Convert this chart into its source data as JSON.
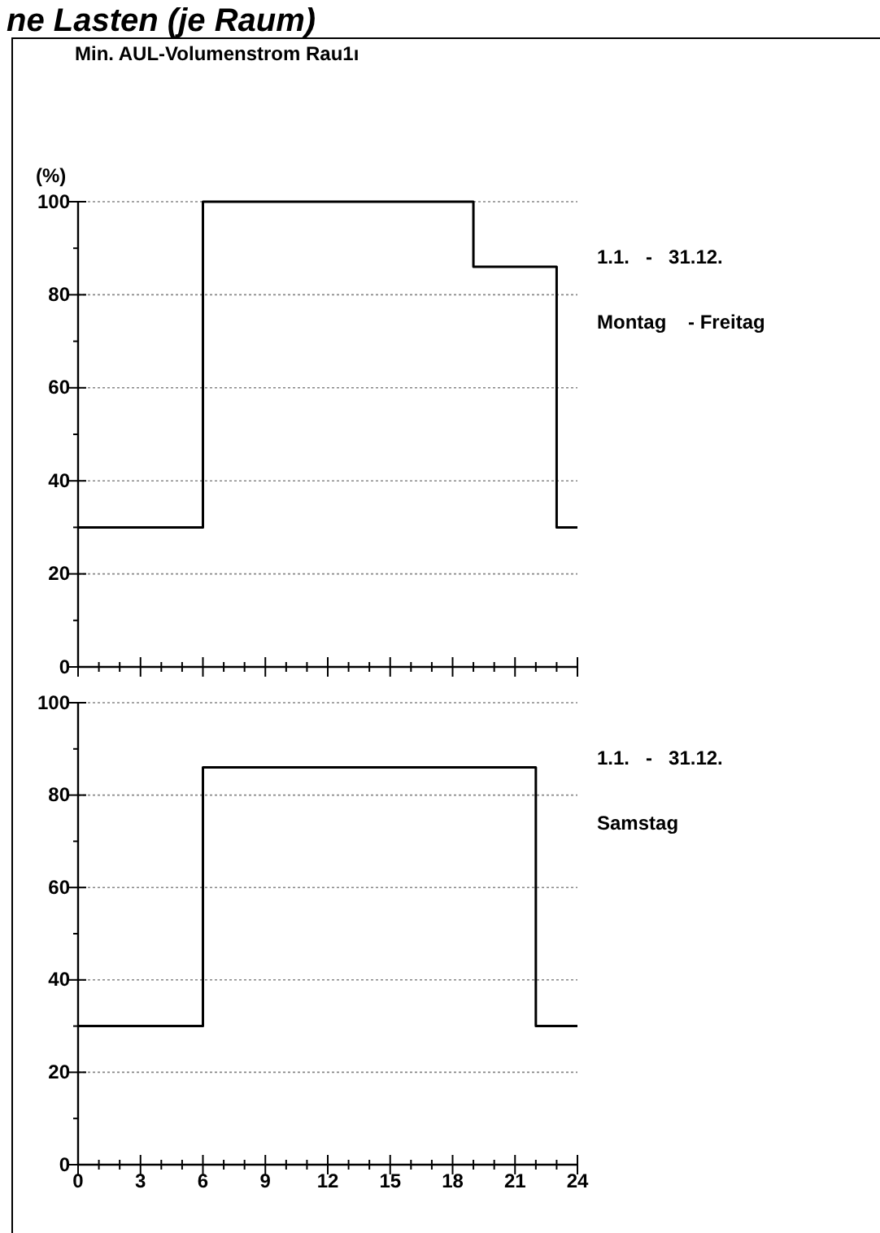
{
  "chart_data": [
    {
      "type": "step",
      "title": "ne Lasten (je Raum)",
      "subtitle": "Min. AUL-Volumenstrom Rau1ı",
      "ylabel": "(%)",
      "x": [
        0,
        6,
        19,
        23,
        24
      ],
      "values": [
        30,
        100,
        86,
        30,
        30
      ],
      "color": "#000000",
      "xlim": [
        0,
        24
      ],
      "ylim": [
        0,
        100
      ],
      "xticks": [
        {
          "value": 0,
          "label": null
        },
        {
          "value": 1,
          "label": null
        },
        {
          "value": 2,
          "label": null
        },
        {
          "value": 3,
          "label": null
        },
        {
          "value": 4,
          "label": null
        },
        {
          "value": 5,
          "label": null
        },
        {
          "value": 6,
          "label": null
        },
        {
          "value": 7,
          "label": null
        },
        {
          "value": 8,
          "label": null
        },
        {
          "value": 9,
          "label": null
        },
        {
          "value": 10,
          "label": null
        },
        {
          "value": 11,
          "label": null
        },
        {
          "value": 12,
          "label": null
        },
        {
          "value": 13,
          "label": null
        },
        {
          "value": 14,
          "label": null
        },
        {
          "value": 15,
          "label": null
        },
        {
          "value": 16,
          "label": null
        },
        {
          "value": 17,
          "label": null
        },
        {
          "value": 18,
          "label": null
        },
        {
          "value": 19,
          "label": null
        },
        {
          "value": 20,
          "label": null
        },
        {
          "value": 21,
          "label": null
        },
        {
          "value": 22,
          "label": null
        },
        {
          "value": 23,
          "label": null
        },
        {
          "value": 24,
          "label": null
        }
      ],
      "yticks": [
        0,
        {
          "value": 10,
          "label": null
        },
        20,
        {
          "value": 30,
          "label": null
        },
        40,
        {
          "value": 50,
          "label": null
        },
        60,
        {
          "value": 70,
          "label": null
        },
        80,
        {
          "value": 90,
          "label": null
        },
        100
      ],
      "grid": "y",
      "tick_labels": "y",
      "annotations": [
        "1.1.   -   31.12.",
        "Montag    - Freitag"
      ]
    },
    {
      "type": "step",
      "x": [
        0,
        6,
        22,
        24
      ],
      "values": [
        30,
        86,
        30,
        30
      ],
      "color": "#000000",
      "xlim": [
        0,
        24
      ],
      "ylim": [
        0,
        100
      ],
      "xticks": [
        0,
        {
          "value": 1,
          "label": null
        },
        {
          "value": 2,
          "label": null
        },
        3,
        {
          "value": 4,
          "label": null
        },
        {
          "value": 5,
          "label": null
        },
        6,
        {
          "value": 7,
          "label": null
        },
        {
          "value": 8,
          "label": null
        },
        9,
        {
          "value": 10,
          "label": null
        },
        {
          "value": 11,
          "label": null
        },
        12,
        {
          "value": 13,
          "label": null
        },
        {
          "value": 14,
          "label": null
        },
        15,
        {
          "value": 16,
          "label": null
        },
        {
          "value": 17,
          "label": null
        },
        18,
        {
          "value": 19,
          "label": null
        },
        {
          "value": 20,
          "label": null
        },
        21,
        {
          "value": 22,
          "label": null
        },
        {
          "value": 23,
          "label": null
        },
        24
      ],
      "yticks": [
        0,
        {
          "value": 10,
          "label": null
        },
        20,
        {
          "value": 30,
          "label": null
        },
        40,
        {
          "value": 50,
          "label": null
        },
        60,
        {
          "value": 70,
          "label": null
        },
        80,
        {
          "value": 90,
          "label": null
        },
        100
      ],
      "grid": "y",
      "annotations": [
        "1.1.   -   31.12.",
        "Samstag"
      ]
    }
  ]
}
